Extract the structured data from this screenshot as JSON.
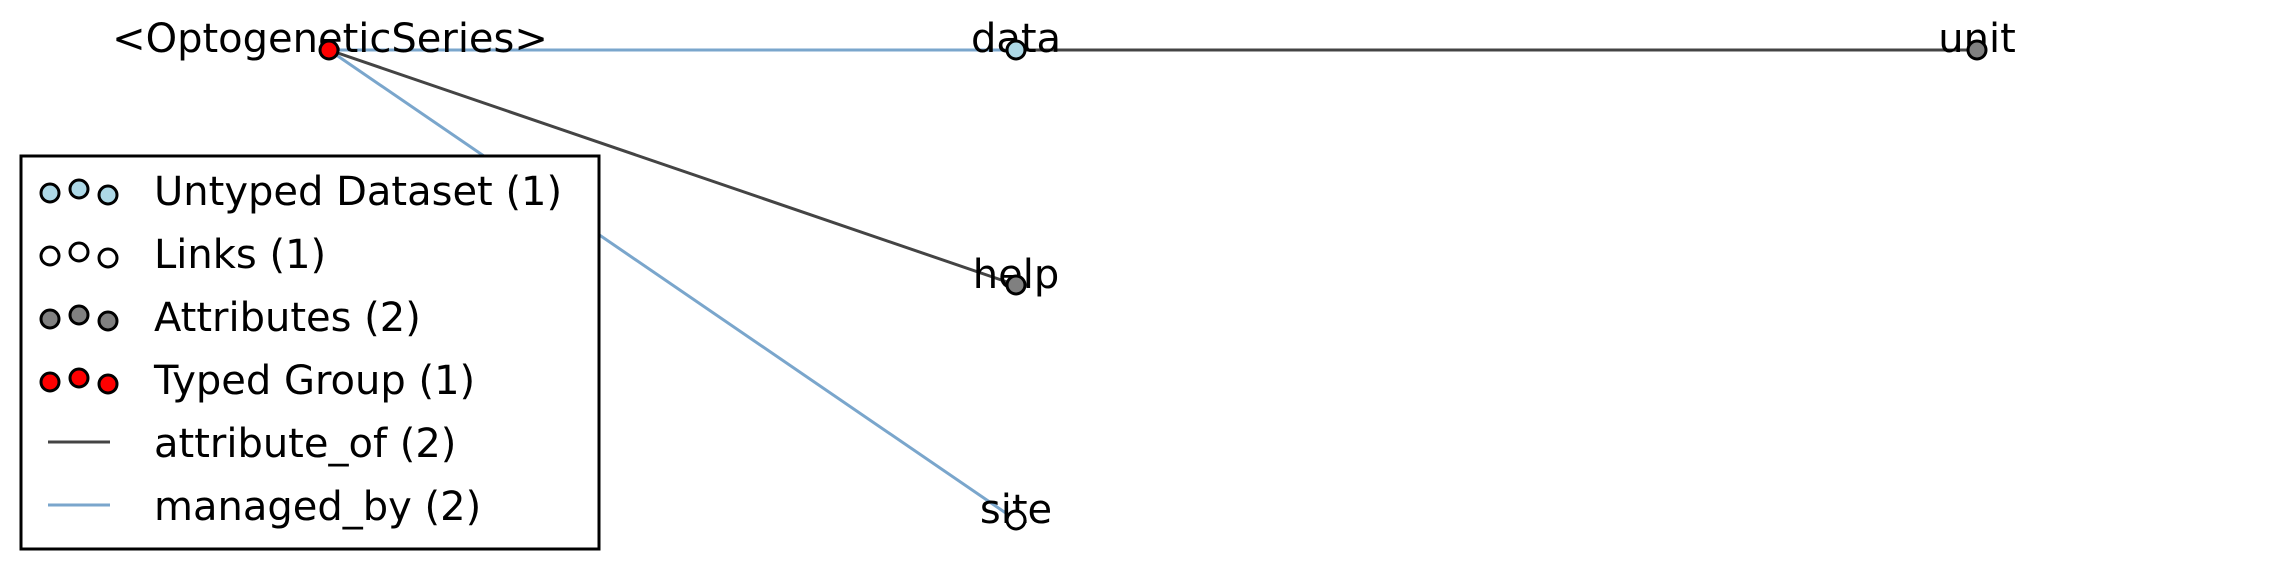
{
  "nodes": {
    "root": {
      "label": "<OptogeneticSeries>",
      "kind": "typed_group"
    },
    "data": {
      "label": "data",
      "kind": "untyped_dataset"
    },
    "unit": {
      "label": "unit",
      "kind": "attribute"
    },
    "help": {
      "label": "help",
      "kind": "attribute"
    },
    "site": {
      "label": "site",
      "kind": "link"
    }
  },
  "edges": [
    {
      "from": "root",
      "to": "data",
      "kind": "managed_by"
    },
    {
      "from": "root",
      "to": "site",
      "kind": "managed_by"
    },
    {
      "from": "root",
      "to": "help",
      "kind": "attribute_of"
    },
    {
      "from": "data",
      "to": "unit",
      "kind": "attribute_of"
    }
  ],
  "legend": {
    "items": [
      {
        "label": "Untyped Dataset (1)",
        "kind": "untyped_dataset"
      },
      {
        "label": "Links (1)",
        "kind": "link"
      },
      {
        "label": "Attributes (2)",
        "kind": "attribute"
      },
      {
        "label": "Typed Group (1)",
        "kind": "typed_group"
      },
      {
        "label": "attribute_of (2)",
        "kind": "attribute_of"
      },
      {
        "label": "managed_by (2)",
        "kind": "managed_by"
      }
    ]
  },
  "colors": {
    "untyped_dataset": "#add8e6",
    "link": "#ffffff",
    "attribute": "#808080",
    "typed_group": "#ff0000",
    "attribute_of": "#444444",
    "managed_by": "#7aa6cc",
    "node_stroke": "#000000"
  }
}
